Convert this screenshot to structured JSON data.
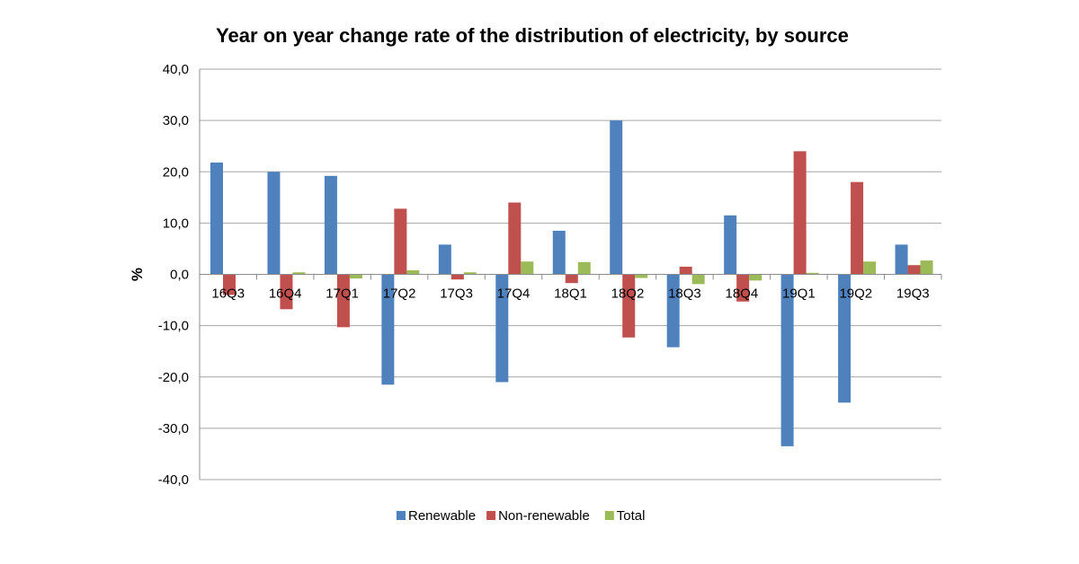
{
  "chart_data": {
    "type": "bar",
    "title": "Year on year change rate of the distribution of electricity, by source",
    "xlabel": "",
    "ylabel": "%",
    "ylim": [
      -40,
      40
    ],
    "ytick_step": 10,
    "ytick_labels": [
      "40,0",
      "30,0",
      "20,0",
      "10,0",
      "0,0",
      "-10,0",
      "-20,0",
      "-30,0",
      "-40,0"
    ],
    "grid": true,
    "legend_position": "bottom",
    "categories": [
      "16Q3",
      "16Q4",
      "17Q1",
      "17Q2",
      "17Q3",
      "17Q4",
      "18Q1",
      "18Q2",
      "18Q3",
      "18Q4",
      "19Q1",
      "19Q2",
      "19Q3"
    ],
    "series": [
      {
        "name": "Renewable",
        "color": "#4F81BD",
        "values": [
          21.8,
          20.0,
          19.2,
          -21.5,
          5.8,
          -21.0,
          8.5,
          30.0,
          -14.2,
          11.5,
          -33.5,
          -25.0,
          5.8
        ]
      },
      {
        "name": "Non-renewable",
        "color": "#C0504D",
        "values": [
          -4.0,
          -6.8,
          -10.3,
          12.8,
          -1.0,
          14.0,
          -1.7,
          -12.3,
          1.5,
          -5.3,
          24.0,
          18.0,
          1.8
        ]
      },
      {
        "name": "Total",
        "color": "#9BBB59",
        "values": [
          0.0,
          0.4,
          -0.8,
          0.8,
          0.4,
          2.5,
          2.4,
          -0.7,
          -1.9,
          -1.2,
          0.3,
          2.5,
          2.7
        ]
      }
    ]
  }
}
